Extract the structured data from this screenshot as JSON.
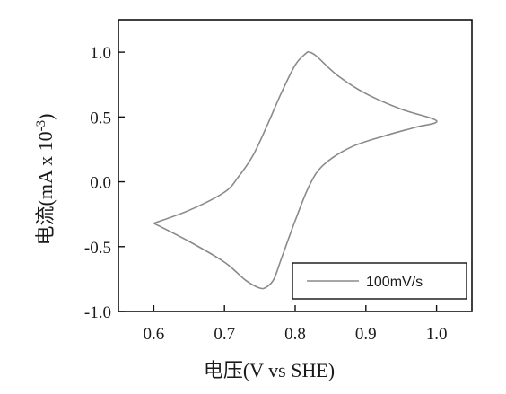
{
  "chart_data": {
    "type": "line",
    "xlabel": "电压(V vs SHE)",
    "ylabel_main": "电流(mA x 10",
    "ylabel_sup": "-3",
    "ylabel_end": ")",
    "xlim": [
      0.55,
      1.05
    ],
    "ylim": [
      -1.0,
      1.25
    ],
    "x_ticks": [
      0.6,
      0.7,
      0.8,
      0.9,
      1.0
    ],
    "x_tick_labels": [
      "0.6",
      "0.7",
      "0.8",
      "0.9",
      "1.0"
    ],
    "y_ticks": [
      -1.0,
      -0.5,
      0.0,
      0.5,
      1.0
    ],
    "y_tick_labels": [
      "-1.0",
      "-0.5",
      "0.0",
      "0.5",
      "1.0"
    ],
    "grid": false,
    "legend_position": "bottom-right",
    "series": [
      {
        "name": "100mV/s",
        "color": "#8a8a8a",
        "x": [
          0.6,
          0.65,
          0.7,
          0.72,
          0.74,
          0.76,
          0.78,
          0.8,
          0.815,
          0.82,
          0.83,
          0.86,
          0.9,
          0.95,
          1.0,
          0.97,
          0.93,
          0.88,
          0.84,
          0.82,
          0.8,
          0.78,
          0.77,
          0.76,
          0.75,
          0.73,
          0.7,
          0.65,
          0.6
        ],
        "y": [
          -0.32,
          -0.22,
          -0.08,
          0.04,
          0.2,
          0.43,
          0.68,
          0.9,
          0.99,
          1.0,
          0.97,
          0.82,
          0.68,
          0.56,
          0.47,
          0.42,
          0.36,
          0.27,
          0.13,
          -0.03,
          -0.3,
          -0.6,
          -0.75,
          -0.81,
          -0.82,
          -0.76,
          -0.62,
          -0.46,
          -0.32
        ]
      }
    ]
  }
}
